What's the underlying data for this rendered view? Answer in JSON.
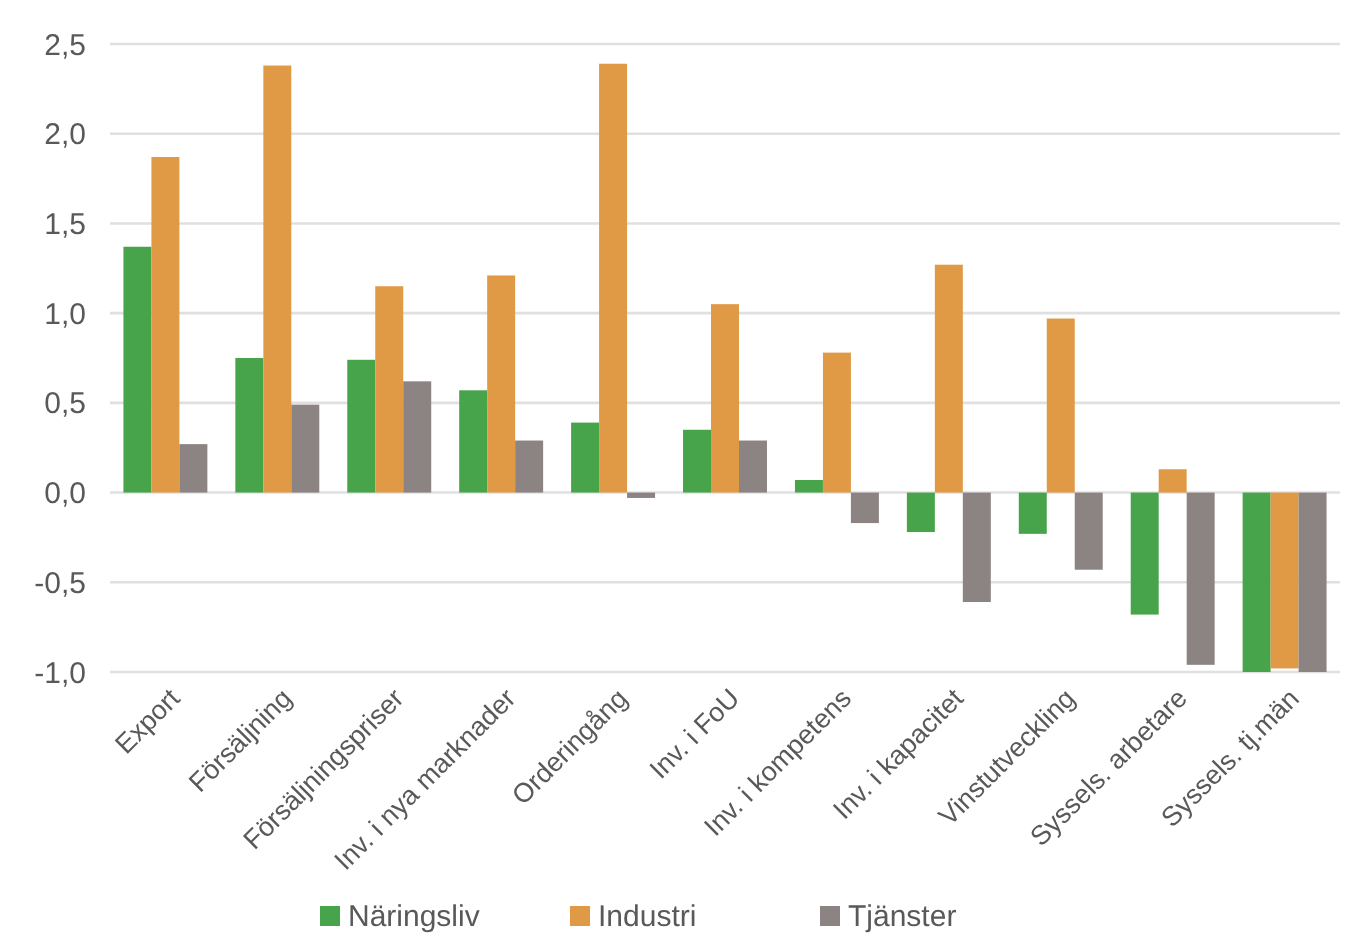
{
  "chart_data": {
    "type": "bar",
    "categories": [
      "Export",
      "Försäljning",
      "Försäljningspriser",
      "Inv. i nya marknader",
      "Orderingång",
      "Inv. i FoU",
      "Inv. i kompetens",
      "Inv. i kapacitet",
      "Vinstutveckling",
      "Syssels. arbetare",
      "Syssels. tj.män"
    ],
    "series": [
      {
        "name": "Näringsliv",
        "color": "#47a44b",
        "values": [
          1.37,
          0.75,
          0.74,
          0.57,
          0.39,
          0.35,
          0.07,
          -0.22,
          -0.23,
          -0.68,
          -1.0
        ]
      },
      {
        "name": "Industri",
        "color": "#e09a45",
        "values": [
          1.87,
          2.38,
          1.15,
          1.21,
          2.39,
          1.05,
          0.78,
          1.27,
          0.97,
          0.13,
          -0.98
        ]
      },
      {
        "name": "Tjänster",
        "color": "#8c8482",
        "values": [
          0.27,
          0.49,
          0.62,
          0.29,
          -0.03,
          0.29,
          -0.17,
          -0.61,
          -0.43,
          -0.96,
          -1.0
        ]
      }
    ],
    "ylim": [
      -1.0,
      2.5
    ],
    "yticks": [
      {
        "value": -1.0,
        "label": "-1,0"
      },
      {
        "value": -0.5,
        "label": "-0,5"
      },
      {
        "value": 0,
        "label": "0,0"
      },
      {
        "value": 0.5,
        "label": "0,5"
      },
      {
        "value": 1.0,
        "label": "1,0"
      },
      {
        "value": 1.5,
        "label": "1,5"
      },
      {
        "value": 2.0,
        "label": "2,0"
      },
      {
        "value": 2.5,
        "label": "2,5"
      }
    ],
    "grid": "y",
    "legend": "bottom"
  }
}
